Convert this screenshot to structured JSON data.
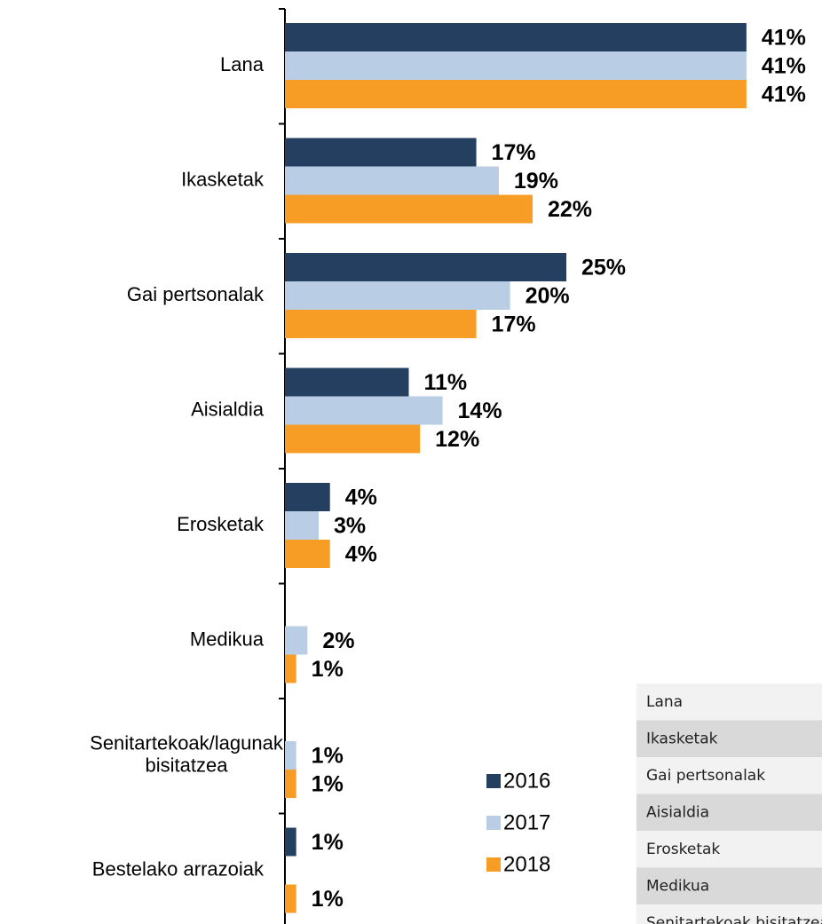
{
  "chart_data": {
    "type": "bar",
    "orientation": "horizontal",
    "categories": [
      "Lana",
      "Ikasketak",
      "Gai pertsonalak",
      "Aisialdia",
      "Erosketak",
      "Medikua",
      [
        "Senitartekoak/lagunak",
        "bisitatzea"
      ],
      "Bestelako arrazoiak"
    ],
    "series": [
      {
        "name": "2016",
        "color": "#243f60",
        "values": [
          41,
          17,
          25,
          11,
          4,
          null,
          null,
          1
        ],
        "value_labels": [
          "41%",
          "17%",
          "25%",
          "11%",
          "4%",
          null,
          null,
          "1%"
        ]
      },
      {
        "name": "2017",
        "color": "#b9cde5",
        "values": [
          41,
          19,
          20,
          14,
          3,
          2,
          1,
          null
        ],
        "value_labels": [
          "41%",
          "19%",
          "20%",
          "14%",
          "3%",
          "2%",
          "1%",
          null
        ]
      },
      {
        "name": "2018",
        "color": "#f79d26",
        "values": [
          41,
          22,
          17,
          12,
          4,
          1,
          1,
          1
        ],
        "value_labels": [
          "41%",
          "22%",
          "17%",
          "12%",
          "4%",
          "1%",
          "1%",
          "1%"
        ]
      }
    ],
    "legend": "bottom-center"
  },
  "table": {
    "rows": [
      "Lana",
      "Ikasketak",
      "Gai pertsonalak",
      "Aisialdia",
      "Erosketak",
      "Medikua",
      "Senitartekoak bisitatzea"
    ]
  }
}
